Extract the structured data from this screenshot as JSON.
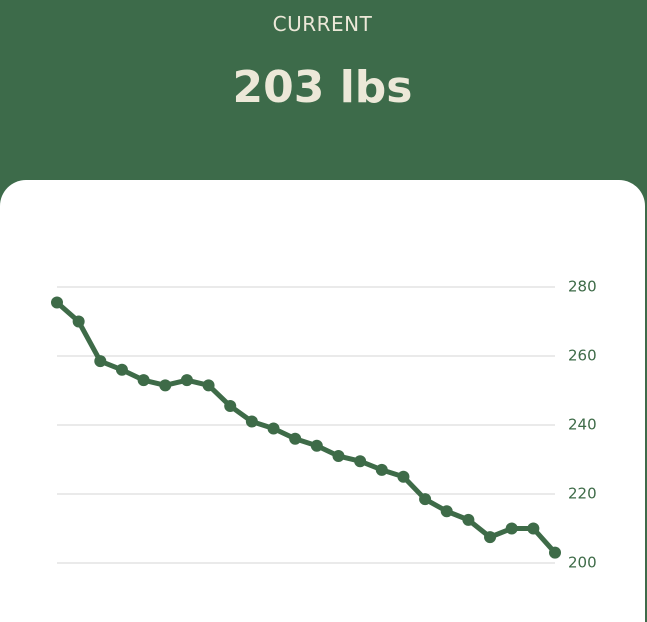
{
  "header": {
    "label": "CURRENT",
    "value": "203 lbs"
  },
  "chart_data": {
    "type": "line",
    "categories": [
      null,
      null,
      null,
      null,
      null,
      null,
      null,
      null,
      null,
      null,
      null,
      null,
      null,
      null,
      null,
      null,
      null,
      null,
      null,
      null,
      null,
      null,
      null,
      null
    ],
    "series": [
      {
        "color": "#3e6b48",
        "values": [
          275.5,
          270,
          258.5,
          256,
          253,
          251.5,
          253,
          251.5,
          245.5,
          241,
          239,
          236,
          234,
          231,
          229.5,
          227,
          225,
          218.5,
          215,
          212.5,
          207.5,
          210,
          210,
          203
        ]
      }
    ],
    "ylim": [
      200,
      280
    ],
    "yticks": [
      200,
      220,
      240,
      260,
      280
    ],
    "grid": true
  }
}
